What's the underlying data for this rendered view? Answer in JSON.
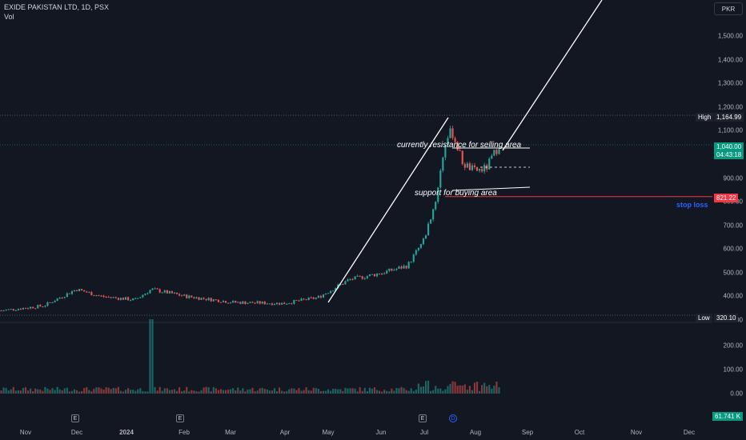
{
  "header": {
    "symbol": "EXIDE PAKISTAN LTD, 1D, PSX",
    "volume_label": "Vol",
    "currency": "PKR"
  },
  "price_axis": {
    "ticks": [
      "1,500.00",
      "1,400.00",
      "1,300.00",
      "1,200.00",
      "1,100.00",
      "900.00",
      "800.00",
      "700.00",
      "600.00",
      "500.00",
      "400.00",
      "300.00"
    ],
    "tick_values": [
      1500,
      1400,
      1300,
      1200,
      1100,
      900,
      800,
      700,
      600,
      500,
      400,
      300
    ]
  },
  "volume_axis": {
    "ticks": [
      "200.00",
      "100.00",
      "0.00"
    ],
    "tick_values": [
      200,
      100,
      0
    ]
  },
  "time_axis": {
    "ticks": [
      "Nov",
      "Dec",
      "2024",
      "Feb",
      "Mar",
      "Apr",
      "May",
      "Jun",
      "Jul",
      "Aug",
      "Sep",
      "Oct",
      "Nov",
      "Dec"
    ]
  },
  "markers": {
    "high_label": "High",
    "high_value": "1,164.99",
    "low_label": "Low",
    "low_value": "320.10",
    "last_price": "1,040.00",
    "countdown": "04:43:18",
    "stop_price": "821.22",
    "last_volume": "61.741 K"
  },
  "annotations": {
    "resistance": "currently resistance for selling area",
    "support": "support for buying area",
    "stop_loss": "stop loss"
  },
  "events": {
    "earnings": "E",
    "dividend": "D"
  },
  "colors": {
    "background": "#131722",
    "up": "#26a69a",
    "down": "#ef5350",
    "high_tag": "#1e222d",
    "last_tag": "#089981",
    "stop_tag": "#f23645",
    "stop_text": "#2962ff"
  },
  "chart_data": {
    "type": "candlestick",
    "title": "EXIDE PAKISTAN LTD, 1D, PSX",
    "ylim": [
      300,
      1520
    ],
    "x_range": [
      "Nov 2023",
      "Dec 2024"
    ],
    "close_series_approx": [
      {
        "date": "2023-10-20",
        "close": 340
      },
      {
        "date": "2023-11-15",
        "close": 360
      },
      {
        "date": "2023-12-05",
        "close": 430
      },
      {
        "date": "2023-12-20",
        "close": 400
      },
      {
        "date": "2024-01-10",
        "close": 385
      },
      {
        "date": "2024-01-20",
        "close": 430
      },
      {
        "date": "2024-02-10",
        "close": 400
      },
      {
        "date": "2024-03-10",
        "close": 375
      },
      {
        "date": "2024-04-10",
        "close": 370
      },
      {
        "date": "2024-05-01",
        "close": 395
      },
      {
        "date": "2024-05-20",
        "close": 470
      },
      {
        "date": "2024-06-10",
        "close": 500
      },
      {
        "date": "2024-06-25",
        "close": 530
      },
      {
        "date": "2024-07-05",
        "close": 640
      },
      {
        "date": "2024-07-12",
        "close": 800
      },
      {
        "date": "2024-07-18",
        "close": 1050
      },
      {
        "date": "2024-07-22",
        "close": 1100
      },
      {
        "date": "2024-07-29",
        "close": 960
      },
      {
        "date": "2024-08-05",
        "close": 930
      },
      {
        "date": "2024-08-12",
        "close": 940
      },
      {
        "date": "2024-08-20",
        "close": 1040
      }
    ],
    "high": 1164.99,
    "low": 320.1,
    "last": 1040.0,
    "stop_loss": 821.22,
    "volume_spike": {
      "date": "2024-01-20",
      "volume": 310
    },
    "volume_last": 61.741
  }
}
